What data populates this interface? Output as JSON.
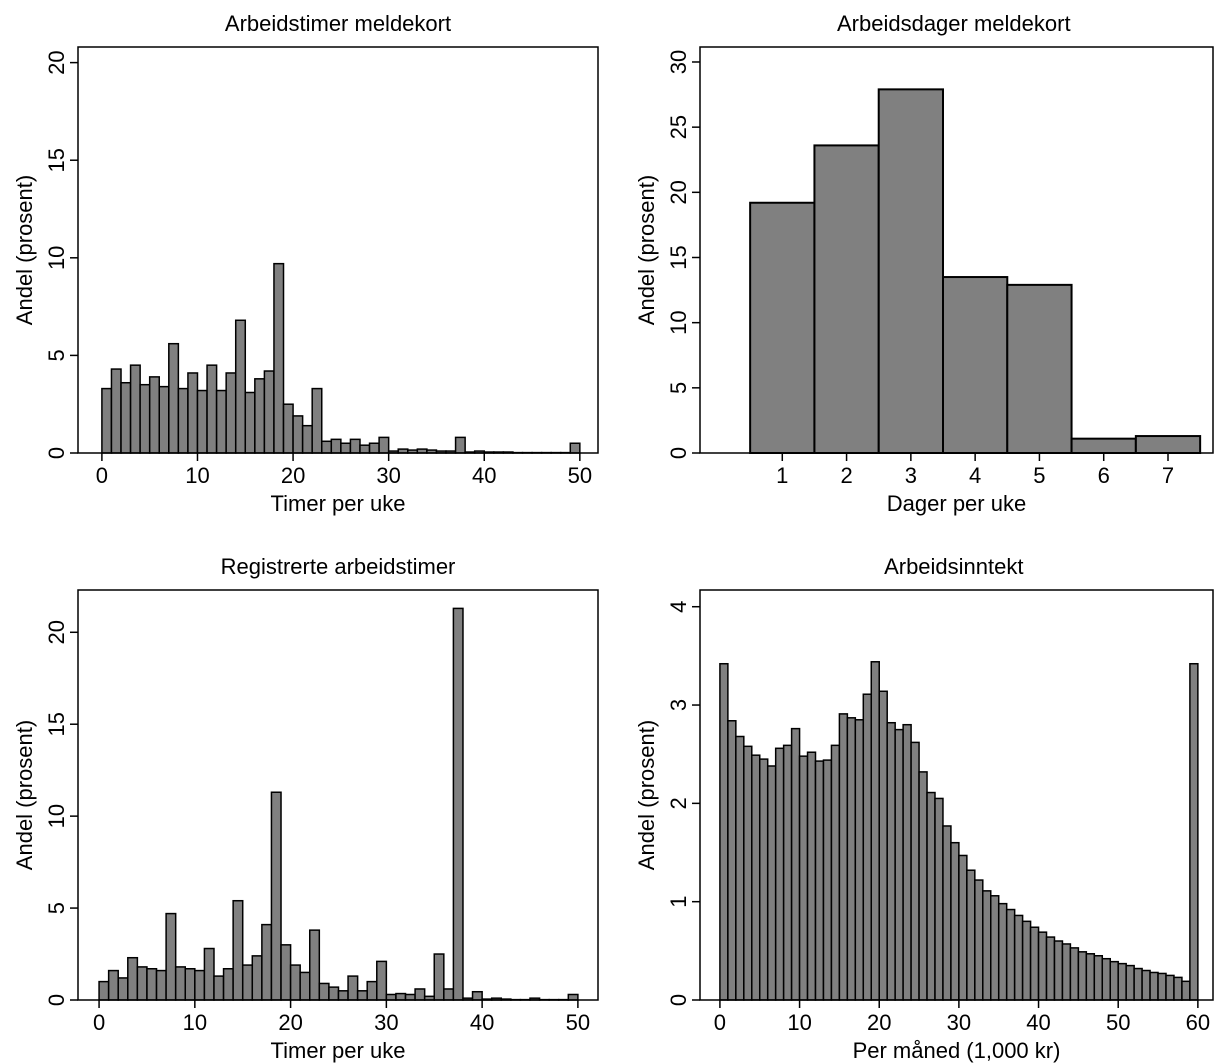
{
  "chart_data": [
    {
      "type": "histogram",
      "title": "Arbeidstimer meldekort",
      "xlabel": "Timer per uke",
      "ylabel": "Andel (prosent)",
      "bins": [
        0,
        1,
        2,
        3,
        4,
        5,
        6,
        7,
        8,
        9,
        10,
        11,
        12,
        13,
        14,
        15,
        16,
        17,
        18,
        19,
        20,
        21,
        22,
        23,
        24,
        25,
        26,
        27,
        28,
        29,
        30,
        31,
        32,
        33,
        34,
        35,
        36,
        37,
        38,
        39,
        40,
        41,
        42,
        43,
        44,
        45,
        46,
        47,
        48,
        49,
        50
      ],
      "values": [
        3.3,
        4.3,
        3.6,
        4.5,
        3.5,
        3.9,
        3.4,
        5.6,
        3.3,
        4.1,
        3.2,
        4.5,
        3.2,
        4.1,
        6.8,
        3.1,
        3.8,
        4.2,
        9.7,
        2.5,
        1.9,
        1.4,
        3.3,
        0.6,
        0.7,
        0.5,
        0.7,
        0.4,
        0.5,
        0.8,
        0.1,
        0.2,
        0.15,
        0.2,
        0.15,
        0.1,
        0.1,
        0.8,
        0.05,
        0.1,
        0.05,
        0.05,
        0.05,
        0.02,
        0.02,
        0.02,
        0.02,
        0.02,
        0.02,
        0.5
      ],
      "color": "#808080",
      "xlim": [
        -2.5,
        51.9
      ],
      "ylim": [
        0,
        20.8
      ],
      "xticks": [
        0,
        10,
        20,
        30,
        40,
        50
      ],
      "yticks": [
        0,
        5,
        10,
        15,
        20
      ]
    },
    {
      "type": "histogram",
      "title": "Arbeidsdager meldekort",
      "xlabel": "Dager per uke",
      "ylabel": "Andel (prosent)",
      "bins": [
        0.5,
        1.5,
        2.5,
        3.5,
        4.5,
        5.5,
        6.5,
        7.5
      ],
      "values": [
        19.2,
        23.6,
        27.9,
        13.5,
        12.9,
        1.1,
        1.3
      ],
      "color": "#808080",
      "xlim": [
        -0.28,
        7.7
      ],
      "ylim": [
        0,
        31.15
      ],
      "xticks": [
        1,
        2,
        3,
        4,
        5,
        6,
        7
      ],
      "yticks": [
        0,
        5,
        10,
        15,
        20,
        25,
        30
      ]
    },
    {
      "type": "histogram",
      "title": "Registrerte arbeidstimer",
      "xlabel": "Timer per uke",
      "ylabel": "Andel (prosent)",
      "bins": [
        0,
        1,
        2,
        3,
        4,
        5,
        6,
        7,
        8,
        9,
        10,
        11,
        12,
        13,
        14,
        15,
        16,
        17,
        18,
        19,
        20,
        21,
        22,
        23,
        24,
        25,
        26,
        27,
        28,
        29,
        30,
        31,
        32,
        33,
        34,
        35,
        36,
        37,
        38,
        39,
        40,
        41,
        42,
        43,
        44,
        45,
        46,
        47,
        48,
        49,
        50
      ],
      "values": [
        1.0,
        1.6,
        1.2,
        2.3,
        1.8,
        1.7,
        1.6,
        4.7,
        1.8,
        1.7,
        1.6,
        2.8,
        1.3,
        1.7,
        5.4,
        1.9,
        2.4,
        4.1,
        11.3,
        3.0,
        1.9,
        1.5,
        3.8,
        0.9,
        0.7,
        0.5,
        1.3,
        0.5,
        1.0,
        2.1,
        0.3,
        0.35,
        0.3,
        0.6,
        0.2,
        2.5,
        0.6,
        21.3,
        0.1,
        0.45,
        0.05,
        0.1,
        0.05,
        0.02,
        0.02,
        0.1,
        0.02,
        0.02,
        0.02,
        0.3
      ],
      "color": "#808080",
      "xlim": [
        -2.2,
        52.1
      ],
      "ylim": [
        0,
        22.3
      ],
      "xticks": [
        0,
        10,
        20,
        30,
        40,
        50
      ],
      "yticks": [
        0,
        5,
        10,
        15,
        20
      ]
    },
    {
      "type": "histogram",
      "title": "Arbeidsinntekt",
      "xlabel": "Per måned (1,000 kr)",
      "ylabel": "Andel (prosent)",
      "bins": [
        0,
        1,
        2,
        3,
        4,
        5,
        6,
        7,
        8,
        9,
        10,
        11,
        12,
        13,
        14,
        15,
        16,
        17,
        18,
        19,
        20,
        21,
        22,
        23,
        24,
        25,
        26,
        27,
        28,
        29,
        30,
        31,
        32,
        33,
        34,
        35,
        36,
        37,
        38,
        39,
        40,
        41,
        42,
        43,
        44,
        45,
        46,
        47,
        48,
        49,
        50,
        51,
        52,
        53,
        54,
        55,
        56,
        57,
        58,
        59,
        60
      ],
      "values": [
        3.42,
        2.84,
        2.68,
        2.58,
        2.49,
        2.45,
        2.38,
        2.56,
        2.59,
        2.76,
        2.48,
        2.52,
        2.43,
        2.44,
        2.59,
        2.91,
        2.87,
        2.85,
        3.11,
        3.44,
        3.14,
        2.82,
        2.75,
        2.8,
        2.62,
        2.32,
        2.11,
        2.05,
        1.77,
        1.6,
        1.47,
        1.32,
        1.22,
        1.11,
        1.06,
        0.98,
        0.92,
        0.86,
        0.8,
        0.74,
        0.69,
        0.64,
        0.6,
        0.57,
        0.53,
        0.49,
        0.47,
        0.45,
        0.42,
        0.39,
        0.37,
        0.35,
        0.32,
        0.3,
        0.28,
        0.27,
        0.25,
        0.23,
        0.19,
        3.42
      ],
      "color": "#808080",
      "xlim": [
        -2.5,
        61.9
      ],
      "ylim": [
        0,
        4.17
      ],
      "xticks": [
        0,
        10,
        20,
        30,
        40,
        50,
        60
      ],
      "yticks": [
        0,
        1,
        2,
        3,
        4
      ]
    }
  ]
}
